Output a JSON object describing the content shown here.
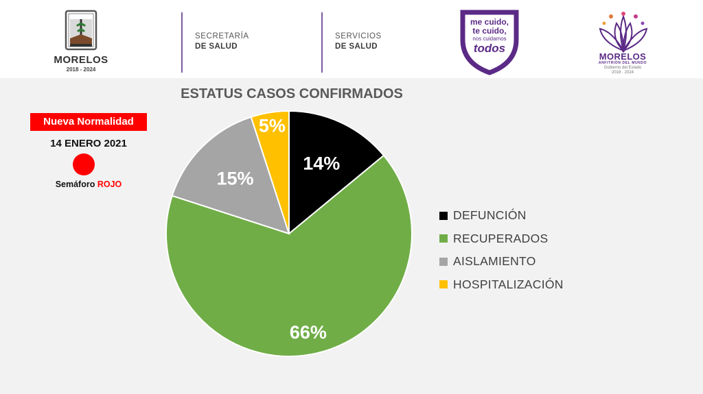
{
  "header": {
    "state": {
      "name": "MORELOS",
      "years": "2018 - 2024"
    },
    "secretaria": {
      "line1": "SECRETARÍA",
      "line2": "DE SALUD"
    },
    "servicios": {
      "line1": "SERVICIOS",
      "line2": "DE SALUD"
    },
    "campaign": {
      "line1": "me cuido,",
      "line2": "te cuido,",
      "line3": "nos cuidamos",
      "line4": "todos"
    },
    "brand": {
      "name": "MORELOS",
      "tagline": "ANFITRIÓN DEL MUNDO",
      "gov": "Gobierno del Estado",
      "years": "2018 · 2024"
    }
  },
  "status": {
    "badge": "Nueva Normalidad",
    "date": "14 ENERO 2021",
    "semaforo_label": "Semáforo",
    "semaforo_value": "ROJO",
    "light_color": "#ff0000"
  },
  "chart_data": {
    "type": "pie",
    "title": "ESTATUS CASOS CONFIRMADOS",
    "categories": [
      "DEFUNCIÓN",
      "RECUPERADOS",
      "AISLAMIENTO",
      "HOSPITALIZACIÓN"
    ],
    "values": [
      14,
      66,
      15,
      5
    ],
    "labels": [
      "14%",
      "66%",
      "15%",
      "5%"
    ],
    "colors": [
      "#000000",
      "#70ad47",
      "#a5a5a5",
      "#ffc000"
    ],
    "label_colors": [
      "#ffffff",
      "#ffffff",
      "#ffffff",
      "#ffffff"
    ],
    "start": "12 o'clock, clockwise",
    "legend_position": "right"
  }
}
